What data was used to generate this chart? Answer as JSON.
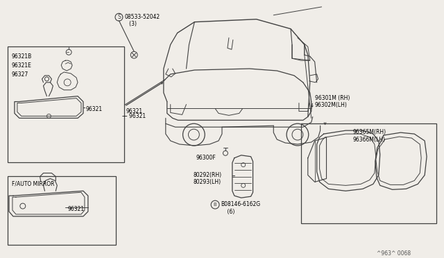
{
  "bg_color": "#f0ede8",
  "line_color": "#404040",
  "part_numbers": {
    "screw_top": "08533-52042\n   (3)",
    "rearview_b": "96321B",
    "rearview_e": "96321E",
    "rearview_327": "96327",
    "rearview_main": "96321",
    "auto_mirror_label": "F/AUTO MIRROR",
    "auto_mirror_num": "96321",
    "door_mirror_rh": "96301M (RH)\n96302M(LH)",
    "door_mirror_glass_rh": "96365M(RH)\n96366M(LH)",
    "mirror_mount": "96300F",
    "door_rh": "80292(RH)\n80293(LH)",
    "bolt": "B08146-6162G\n    (6)",
    "watermark": "^963^ 0068"
  },
  "figsize": [
    6.4,
    3.72
  ],
  "dpi": 100
}
